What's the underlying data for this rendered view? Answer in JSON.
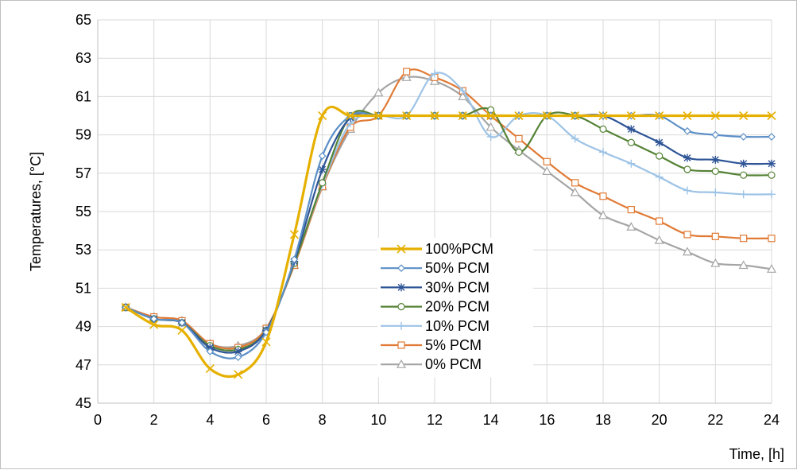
{
  "chart_data": {
    "type": "line",
    "title": "",
    "xlabel": "Time, [h]",
    "ylabel": "Temperatures, [°C]",
    "xlim": [
      0,
      24
    ],
    "ylim": [
      45,
      65
    ],
    "x_ticks": [
      "0",
      "2",
      "4",
      "6",
      "8",
      "10",
      "12",
      "14",
      "16",
      "18",
      "20",
      "22",
      "24"
    ],
    "y_ticks": [
      "45",
      "47",
      "49",
      "51",
      "53",
      "55",
      "57",
      "59",
      "61",
      "63",
      "65"
    ],
    "grid": true,
    "legend_position": "center",
    "x": [
      1,
      2,
      3,
      4,
      5,
      6,
      7,
      8,
      9,
      10,
      11,
      12,
      13,
      14,
      15,
      16,
      17,
      18,
      19,
      20,
      21,
      22,
      23,
      24
    ],
    "series": [
      {
        "name": "100%PCM",
        "color": "#e6b000",
        "marker": "x",
        "values": [
          50.0,
          49.1,
          48.8,
          46.8,
          46.5,
          48.2,
          53.8,
          60.0,
          60.0,
          60.0,
          60.0,
          60.0,
          60.0,
          60.0,
          60.0,
          60.0,
          60.0,
          60.0,
          60.0,
          60.0,
          60.0,
          60.0,
          60.0,
          60.0
        ]
      },
      {
        "name": "50% PCM",
        "color": "#5b8fc7",
        "marker": "diamond",
        "values": [
          50.0,
          49.4,
          49.2,
          47.7,
          47.4,
          48.7,
          52.5,
          57.9,
          60.0,
          60.0,
          60.0,
          60.0,
          60.0,
          60.0,
          60.0,
          60.0,
          60.0,
          60.0,
          60.0,
          60.0,
          59.2,
          59.0,
          58.9,
          58.9
        ]
      },
      {
        "name": "30% PCM",
        "color": "#2f5597",
        "marker": "star",
        "values": [
          50.0,
          49.4,
          49.2,
          47.9,
          47.7,
          48.8,
          52.4,
          57.2,
          59.9,
          60.0,
          60.0,
          60.0,
          60.0,
          60.0,
          60.0,
          60.0,
          60.0,
          60.0,
          59.3,
          58.6,
          57.8,
          57.7,
          57.5,
          57.5
        ]
      },
      {
        "name": "20% PCM",
        "color": "#548235",
        "marker": "circle",
        "values": [
          50.0,
          49.4,
          49.2,
          48.0,
          47.8,
          48.8,
          52.3,
          56.5,
          60.0,
          60.0,
          60.0,
          60.0,
          60.0,
          60.3,
          58.1,
          60.0,
          60.0,
          59.3,
          58.6,
          57.9,
          57.2,
          57.1,
          56.9,
          56.9
        ]
      },
      {
        "name": "10% PCM",
        "color": "#9dc3e6",
        "marker": "plus",
        "values": [
          50.0,
          49.4,
          49.2,
          48.0,
          47.8,
          48.8,
          52.3,
          56.4,
          59.6,
          60.0,
          60.0,
          62.2,
          61.3,
          58.9,
          60.0,
          60.0,
          58.8,
          58.1,
          57.5,
          56.8,
          56.1,
          56.0,
          55.9,
          55.9
        ]
      },
      {
        "name": "5% PCM",
        "color": "#e07a35",
        "marker": "square",
        "values": [
          50.0,
          49.5,
          49.3,
          48.1,
          47.9,
          48.9,
          52.2,
          56.3,
          59.4,
          60.0,
          62.3,
          62.0,
          61.3,
          60.0,
          58.8,
          57.6,
          56.5,
          55.8,
          55.1,
          54.5,
          53.8,
          53.7,
          53.6,
          53.6
        ]
      },
      {
        "name": "0% PCM",
        "color": "#a5a5a5",
        "marker": "triangle",
        "values": [
          50.0,
          49.5,
          49.3,
          48.1,
          48.0,
          48.9,
          52.2,
          56.3,
          59.3,
          61.2,
          62.0,
          61.8,
          61.0,
          59.4,
          58.2,
          57.1,
          56.0,
          54.8,
          54.2,
          53.5,
          52.9,
          52.3,
          52.2,
          52.0
        ]
      }
    ]
  }
}
